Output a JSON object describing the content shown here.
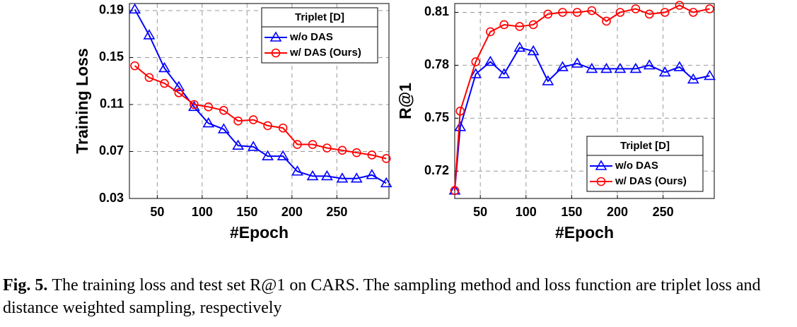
{
  "chart_data": [
    {
      "type": "line",
      "xlabel": "#Epoch",
      "ylabel": "Training Loss",
      "x": [
        25,
        41,
        58,
        74,
        91,
        107,
        124,
        140,
        157,
        173,
        190,
        206,
        223,
        239,
        256,
        272,
        289,
        305
      ],
      "series": [
        {
          "name": "w/o DAS",
          "color": "#0000ff",
          "marker": "triangle",
          "values": [
            0.191,
            0.169,
            0.141,
            0.125,
            0.108,
            0.094,
            0.089,
            0.075,
            0.074,
            0.066,
            0.066,
            0.053,
            0.049,
            0.049,
            0.047,
            0.047,
            0.05,
            0.043
          ]
        },
        {
          "name": "w/ DAS (Ours)",
          "color": "#ff0000",
          "marker": "circle",
          "values": [
            0.143,
            0.133,
            0.128,
            0.12,
            0.11,
            0.108,
            0.105,
            0.096,
            0.097,
            0.092,
            0.09,
            0.076,
            0.076,
            0.073,
            0.071,
            0.069,
            0.067,
            0.064
          ]
        }
      ],
      "xlim": [
        19,
        308
      ],
      "xticks": [
        50,
        100,
        150,
        200,
        250
      ],
      "ylim": [
        0.03,
        0.196
      ],
      "yticks": [
        0.03,
        0.07,
        0.11,
        0.15,
        0.19
      ],
      "grid": true,
      "legend_title": "Triplet [D]",
      "legend": "upper right"
    },
    {
      "type": "line",
      "xlabel": "#Epoch",
      "ylabel": "R@1",
      "x": [
        22,
        28,
        45,
        61,
        76,
        93,
        108,
        124,
        140,
        156,
        172,
        188,
        203,
        220,
        235,
        252,
        268,
        283,
        301
      ],
      "series": [
        {
          "name": "w/o DAS",
          "color": "#0000ff",
          "marker": "triangle",
          "values": [
            0.709,
            0.745,
            0.775,
            0.782,
            0.775,
            0.79,
            0.788,
            0.771,
            0.779,
            0.781,
            0.778,
            0.778,
            0.778,
            0.778,
            0.78,
            0.776,
            0.779,
            0.772,
            0.774
          ]
        },
        {
          "name": "w/ DAS (Ours)",
          "color": "#ff0000",
          "marker": "circle",
          "values": [
            0.709,
            0.754,
            0.782,
            0.799,
            0.803,
            0.802,
            0.803,
            0.809,
            0.81,
            0.81,
            0.811,
            0.805,
            0.81,
            0.812,
            0.809,
            0.81,
            0.814,
            0.81,
            0.812
          ]
        }
      ],
      "xlim": [
        22,
        306
      ],
      "xticks": [
        50,
        100,
        150,
        200,
        250
      ],
      "ylim": [
        0.7045,
        0.815
      ],
      "yticks": [
        0.72,
        0.75,
        0.78,
        0.81
      ],
      "grid": true,
      "legend_title": "Triplet [D]",
      "legend": "lower right"
    }
  ],
  "caption": {
    "label": "Fig. 5.",
    "text": "The training loss and test set R@1 on CARS. The sampling method and loss function are triplet loss and distance weighted sampling, respectively"
  }
}
